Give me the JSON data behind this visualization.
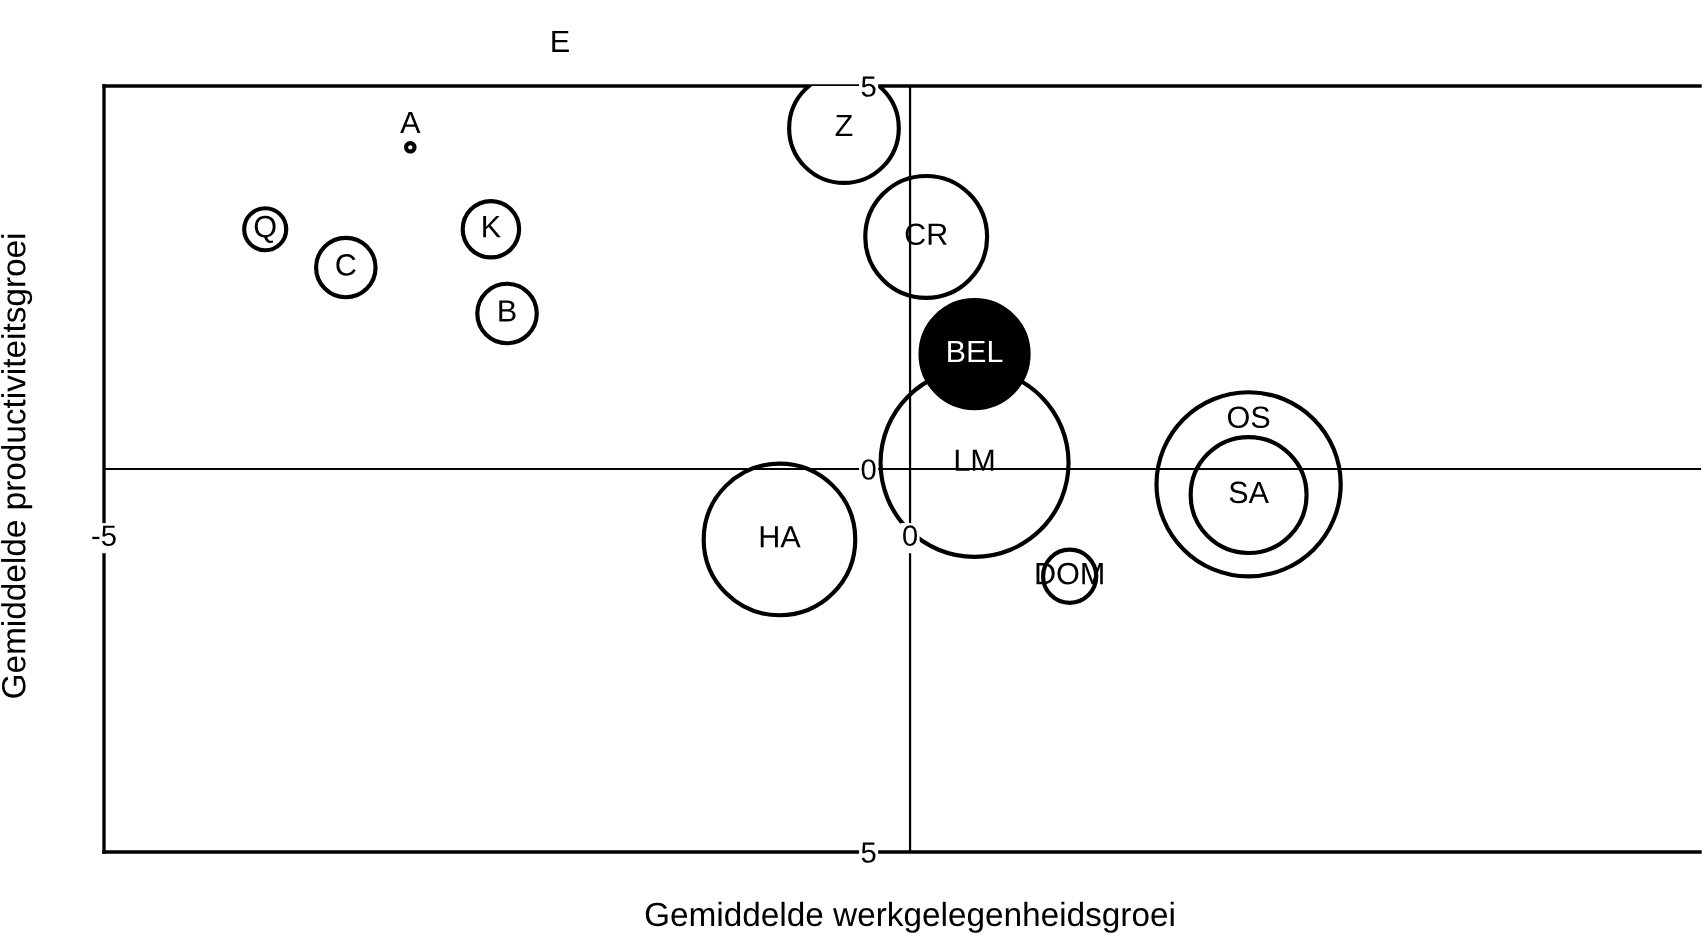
{
  "chart_data": {
    "type": "bubble",
    "xlabel": "Gemiddelde werkgelegenheidsgroei",
    "ylabel": "Gemiddelde productiviteitsgroei",
    "xlim": [
      -5,
      4.9
    ],
    "ylim": [
      -5,
      5
    ],
    "xticks": [
      -5,
      0
    ],
    "yticks": [
      {
        "value": 5,
        "label": "5"
      },
      {
        "value": 0,
        "label": "0"
      },
      {
        "value": -5,
        "label": "5"
      }
    ],
    "series": [
      {
        "x": [
          -4.0,
          -3.5,
          -2.6,
          -2.5,
          -3.1,
          -0.41,
          0.1,
          0.4,
          0.4,
          -0.81,
          2.1,
          2.1,
          0.99
        ],
        "values": [
          3.13,
          2.63,
          3.13,
          2.03,
          4.2,
          4.45,
          3.03,
          0.08,
          1.5,
          -0.92,
          -0.2,
          -0.34,
          -1.4
        ],
        "sizes": [
          0.05,
          0.1,
          0.09,
          0.1,
          0.002,
          0.34,
          0.42,
          1,
          0.33,
          0.65,
          0.96,
          0.38,
          0.08
        ],
        "colors": [
          "#ffffff",
          "#ffffff",
          "#ffffff",
          "#ffffff",
          "#ffffff",
          "#ffffff",
          "#ffffff",
          "#ffffff",
          "#000000",
          "#ffffff",
          "#ffffff",
          "#ffffff",
          "#ffffff"
        ],
        "value_labels": [
          "Q",
          "C",
          "K",
          "B",
          "A",
          "Z",
          "CR",
          "LM",
          "BEL",
          "HA",
          "OS",
          "SA",
          "DOM"
        ]
      }
    ],
    "annotations": [
      "E"
    ],
    "grid": false,
    "legend": false
  }
}
